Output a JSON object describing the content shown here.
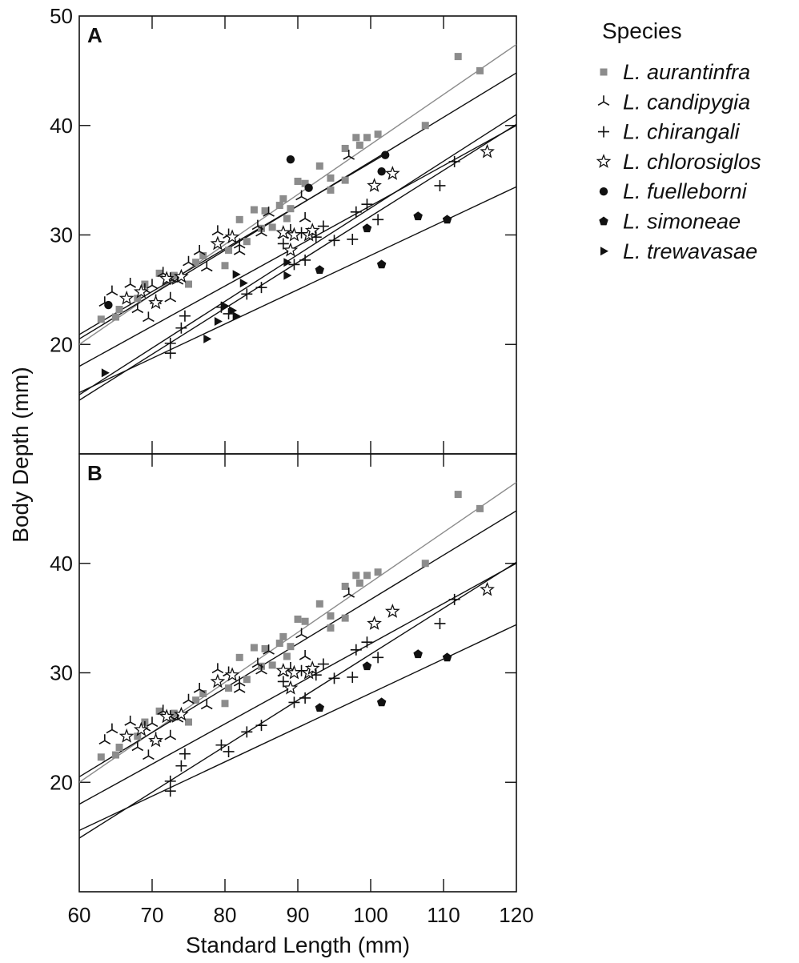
{
  "chart_data": {
    "type": "scatter",
    "xlabel": "Standard Length (mm)",
    "ylabel": "Body Depth (mm)",
    "xlim": [
      60,
      120
    ],
    "x_ticks": [
      "60",
      "70",
      "80",
      "90",
      "100",
      "110",
      "120"
    ],
    "legend": {
      "title": "Species",
      "placement": "right"
    },
    "series": [
      {
        "name": "L. aurantinfra",
        "marker": "square",
        "color": "#8c8c8c",
        "line_color": "#8c8c8c",
        "line": [
          [
            60,
            20.0
          ],
          [
            120,
            47.4
          ]
        ],
        "points": [
          [
            63,
            22.3
          ],
          [
            65,
            22.5
          ],
          [
            65.5,
            23.2
          ],
          [
            68,
            24.2
          ],
          [
            69,
            25.5
          ],
          [
            71,
            26.5
          ],
          [
            73,
            26.3
          ],
          [
            75,
            25.5
          ],
          [
            76,
            27.5
          ],
          [
            77,
            28.1
          ],
          [
            80,
            27.2
          ],
          [
            80.5,
            28.6
          ],
          [
            82,
            31.4
          ],
          [
            83,
            29.4
          ],
          [
            84,
            32.3
          ],
          [
            85,
            30.6
          ],
          [
            85.5,
            32.2
          ],
          [
            86.5,
            30.7
          ],
          [
            87.5,
            32.7
          ],
          [
            88,
            33.3
          ],
          [
            88.5,
            31.5
          ],
          [
            89,
            32.4
          ],
          [
            90,
            34.9
          ],
          [
            91,
            34.7
          ],
          [
            93,
            36.3
          ],
          [
            94.5,
            35.2
          ],
          [
            94.5,
            34.1
          ],
          [
            96.5,
            37.9
          ],
          [
            96.5,
            35.0
          ],
          [
            98,
            38.9
          ],
          [
            98.5,
            38.2
          ],
          [
            99.5,
            38.9
          ],
          [
            101,
            39.2
          ],
          [
            107.5,
            40.0
          ],
          [
            112,
            46.3
          ],
          [
            115,
            45.0
          ]
        ]
      },
      {
        "name": "L. candipygia",
        "marker": "asterisk",
        "color": "#111111",
        "line_color": "#111111",
        "line": [
          [
            60,
            20.5
          ],
          [
            120,
            44.8
          ]
        ],
        "points": [
          [
            63.5,
            23.8
          ],
          [
            64.5,
            24.8
          ],
          [
            67,
            25.5
          ],
          [
            68,
            23.2
          ],
          [
            69,
            25.0
          ],
          [
            69.5,
            22.4
          ],
          [
            70,
            25.4
          ],
          [
            70.5,
            24.0
          ],
          [
            71.5,
            26.5
          ],
          [
            72.5,
            24.2
          ],
          [
            72.5,
            26.0
          ],
          [
            73.5,
            25.8
          ],
          [
            75,
            27.5
          ],
          [
            76.5,
            28.5
          ],
          [
            77.5,
            27.0
          ],
          [
            79,
            30.3
          ],
          [
            80.5,
            30.0
          ],
          [
            82,
            28.5
          ],
          [
            82,
            29.1
          ],
          [
            84.5,
            30.8
          ],
          [
            85,
            30.2
          ],
          [
            86,
            32.0
          ],
          [
            88,
            30.0
          ],
          [
            89,
            30.4
          ],
          [
            90.5,
            33.5
          ],
          [
            91,
            31.5
          ],
          [
            97,
            37.2
          ]
        ]
      },
      {
        "name": "L. chirangali",
        "marker": "plus",
        "color": "#111111",
        "line_color": "#111111",
        "line": [
          [
            60,
            14.9
          ],
          [
            120,
            40.1
          ]
        ],
        "points": [
          [
            72.5,
            20.1
          ],
          [
            72.5,
            19.2
          ],
          [
            74,
            21.5
          ],
          [
            74.5,
            22.6
          ],
          [
            79.5,
            23.4
          ],
          [
            80.5,
            22.8
          ],
          [
            83,
            24.6
          ],
          [
            85,
            25.2
          ],
          [
            88,
            29.2
          ],
          [
            89.5,
            27.3
          ],
          [
            90.5,
            30.2
          ],
          [
            91,
            27.7
          ],
          [
            92.5,
            29.8
          ],
          [
            93.5,
            30.8
          ],
          [
            95,
            29.5
          ],
          [
            97.5,
            29.6
          ],
          [
            98,
            32.1
          ],
          [
            99.5,
            32.8
          ],
          [
            101,
            31.4
          ],
          [
            109.5,
            34.5
          ],
          [
            111.5,
            36.7
          ]
        ]
      },
      {
        "name": "L. chlorosiglos",
        "marker": "star",
        "color": "#111111",
        "line_color": "#111111",
        "line": [
          [
            60,
            18.0
          ],
          [
            120,
            40.0
          ]
        ],
        "points": [
          [
            66.5,
            24.2
          ],
          [
            68.5,
            24.8
          ],
          [
            70.5,
            23.8
          ],
          [
            72,
            26.0
          ],
          [
            74,
            26.2
          ],
          [
            79,
            29.2
          ],
          [
            81,
            29.8
          ],
          [
            88,
            30.2
          ],
          [
            89,
            28.6
          ],
          [
            89.5,
            30.0
          ],
          [
            91.5,
            30.0
          ],
          [
            92,
            30.4
          ],
          [
            100.5,
            34.5
          ],
          [
            103,
            35.6
          ],
          [
            116,
            37.6
          ]
        ]
      },
      {
        "name": "L. fuelleborni",
        "marker": "circle",
        "color": "#111111",
        "line_color": "#111111",
        "line": [
          [
            60,
            20.9
          ],
          [
            101.8,
            37.3
          ]
        ],
        "panel_a_only": true,
        "points": [
          [
            64,
            23.6
          ],
          [
            89,
            36.9
          ],
          [
            91.5,
            34.3
          ],
          [
            101.5,
            35.8
          ],
          [
            102,
            37.3
          ]
        ]
      },
      {
        "name": "L. simoneae",
        "marker": "pentagon",
        "color": "#111111",
        "line_color": "#111111",
        "line": [
          [
            60,
            15.6
          ],
          [
            120,
            34.4
          ]
        ],
        "points": [
          [
            93,
            26.8
          ],
          [
            99.5,
            30.6
          ],
          [
            101.5,
            27.3
          ],
          [
            106.5,
            31.7
          ],
          [
            110.5,
            31.4
          ]
        ]
      },
      {
        "name": "L. trewavasae",
        "marker": "triangle-right",
        "color": "#111111",
        "line_color": "#111111",
        "line": [
          [
            60,
            15.4
          ],
          [
            120,
            41.0
          ]
        ],
        "panel_a_only": true,
        "points": [
          [
            63.5,
            17.4
          ],
          [
            77.5,
            20.5
          ],
          [
            79,
            22.1
          ],
          [
            80,
            23.5
          ],
          [
            81,
            23.1
          ],
          [
            81.5,
            22.6
          ],
          [
            81.5,
            26.4
          ],
          [
            82.5,
            25.6
          ],
          [
            88.5,
            26.3
          ],
          [
            88.5,
            27.5
          ]
        ]
      }
    ],
    "panels": [
      {
        "label": "A",
        "ylim": [
          10,
          50
        ],
        "y_ticks": [
          "20",
          "30",
          "40",
          "50"
        ],
        "include_panel_a_only": true
      },
      {
        "label": "B",
        "ylim": [
          10,
          50
        ],
        "y_ticks": [
          "20",
          "30",
          "40"
        ],
        "include_panel_a_only": false
      }
    ]
  }
}
